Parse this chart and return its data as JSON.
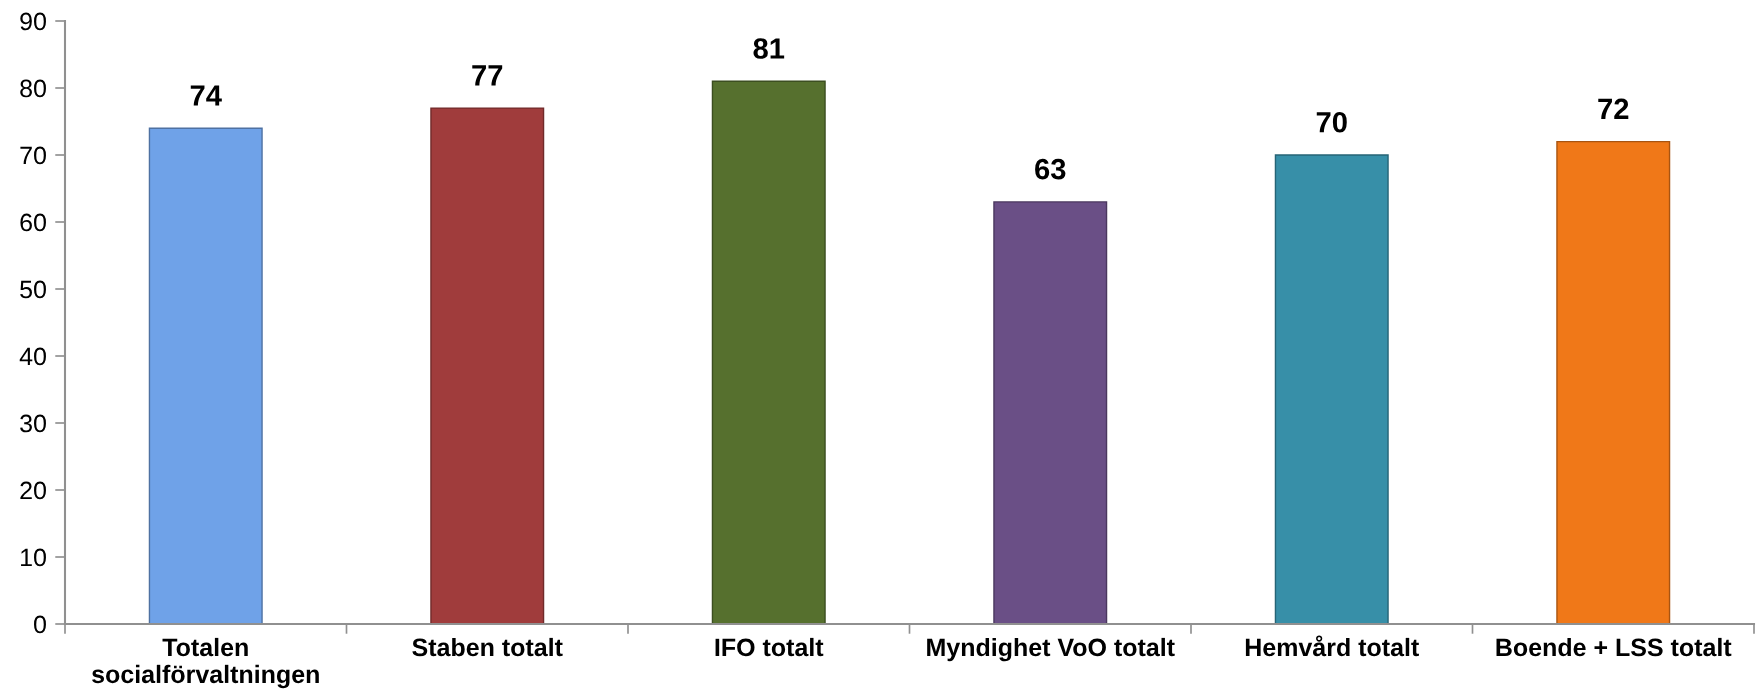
{
  "chart_data": {
    "type": "bar",
    "categories": [
      "Totalen socialförvaltningen",
      "Staben totalt",
      "IFO totalt",
      "Myndighet VoO totalt",
      "Hemvård totalt",
      "Boende + LSS totalt"
    ],
    "values": [
      74,
      77,
      81,
      63,
      70,
      72
    ],
    "colors": [
      "#6fa2e8",
      "#a03c3c",
      "#56702e",
      "#6a4f86",
      "#378fa8",
      "#f07818"
    ],
    "ylim": [
      0,
      90
    ],
    "yticks": [
      0,
      10,
      20,
      30,
      40,
      50,
      60,
      70,
      80,
      90
    ],
    "data_labels": true
  }
}
